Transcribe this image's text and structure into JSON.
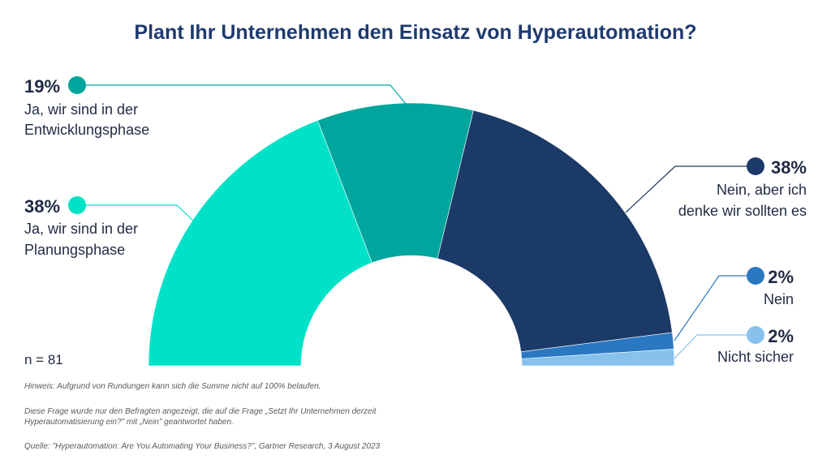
{
  "chart_data": {
    "type": "pie",
    "variant": "semi-donut",
    "title": "Plant Ihr Unternehmen den Einsatz von Hyperautomation?",
    "sample_size": "n = 81",
    "slices": [
      {
        "pct_label": "38%",
        "value": 38,
        "label_lines": [
          "Ja, wir sind in der",
          "Planungsphase"
        ],
        "color": "#00e2c8"
      },
      {
        "pct_label": "19%",
        "value": 19,
        "label_lines": [
          "Ja, wir sind in der",
          "Entwicklungsphase"
        ],
        "color": "#00a59d"
      },
      {
        "pct_label": "38%",
        "value": 38,
        "label_lines": [
          "Nein, aber ich",
          "denke wir sollten es"
        ],
        "color": "#1c3a67"
      },
      {
        "pct_label": "2%",
        "value": 2,
        "label_lines": [
          "Nein"
        ],
        "color": "#2b78c2"
      },
      {
        "pct_label": "2%",
        "value": 2,
        "label_lines": [
          "Nicht sicher"
        ],
        "color": "#86c2ec"
      }
    ]
  },
  "notes": {
    "rounding": "Hinweis: Aufgrund von Rundungen kann sich die Summe nicht auf 100% belaufen.",
    "question_line1": "Diese Frage wurde nur den Befragten angezeigt, die auf die Frage „Setzt Ihr Unternehmen derzeit",
    "question_line2": "Hyperautomatisierung ein?\" mit „Nein\" geantwortet haben.",
    "source": "Quelle: \"Hyperautomation: Are You Automating Your Business?\", Gartner Research, 3 August 2023"
  }
}
